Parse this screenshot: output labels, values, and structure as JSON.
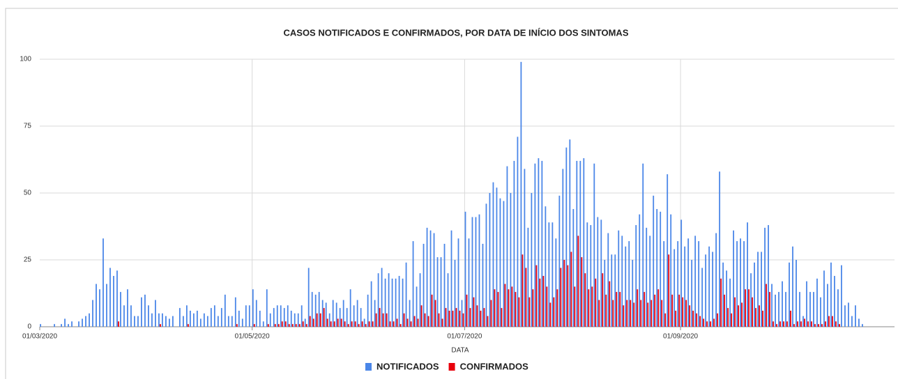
{
  "chart_data": {
    "type": "bar",
    "title": "CASOS NOTIFICADOS E CONFIRMADOS, POR DATA DE INÍCIO DOS SINTOMAS",
    "x_label": "DATA",
    "categories": [
      "01/03/2020",
      null,
      null,
      null,
      null,
      null,
      null,
      null,
      null,
      null,
      null,
      null,
      null,
      null,
      null,
      null,
      null,
      null,
      null,
      null,
      null,
      null,
      null,
      null,
      null,
      null,
      null,
      null,
      null,
      null,
      null,
      null,
      null,
      null,
      null,
      null,
      null,
      null,
      null,
      null,
      null,
      null,
      null,
      null,
      null,
      null,
      null,
      null,
      null,
      null,
      null,
      null,
      null,
      null,
      null,
      null,
      null,
      null,
      null,
      null,
      null,
      "01/05/2020",
      null,
      null,
      null,
      null,
      null,
      null,
      null,
      null,
      null,
      null,
      null,
      null,
      null,
      null,
      null,
      null,
      null,
      null,
      null,
      null,
      null,
      null,
      null,
      null,
      null,
      null,
      null,
      null,
      null,
      null,
      null,
      null,
      null,
      null,
      null,
      null,
      null,
      null,
      null,
      null,
      null,
      null,
      null,
      null,
      null,
      null,
      null,
      null,
      null,
      null,
      null,
      null,
      null,
      null,
      null,
      null,
      null,
      null,
      null,
      null,
      "01/07/2020",
      null,
      null,
      null,
      null,
      null,
      null,
      null,
      null,
      null,
      null,
      null,
      null,
      null,
      null,
      null,
      null,
      null,
      null,
      null,
      null,
      null,
      null,
      null,
      null,
      null,
      null,
      null,
      null,
      null,
      null,
      null,
      null,
      null,
      null,
      null,
      null,
      null,
      null,
      null,
      null,
      null,
      null,
      null,
      null,
      null,
      null,
      null,
      null,
      null,
      null,
      null,
      null,
      null,
      null,
      null,
      null,
      null,
      null,
      null,
      null,
      null,
      "01/09/2020",
      null,
      null,
      null,
      null,
      null,
      null,
      null,
      null,
      null,
      null,
      null,
      null,
      null,
      null,
      null,
      null,
      null,
      null,
      null,
      null,
      null,
      null,
      null,
      null,
      null,
      null,
      null,
      null,
      null,
      null,
      null,
      null,
      null,
      null,
      null,
      null,
      null,
      null,
      null,
      null,
      null,
      null,
      null,
      null,
      null,
      null,
      null,
      null,
      null,
      null,
      null,
      null,
      null
    ],
    "series": [
      {
        "name": "NOTIFICADOS",
        "color": "#4a86e8",
        "values": [
          1,
          0,
          0,
          0,
          1,
          0,
          1,
          3,
          1,
          2,
          0,
          2,
          3,
          4,
          5,
          10,
          16,
          14,
          33,
          16,
          22,
          19,
          21,
          13,
          8,
          14,
          8,
          4,
          4,
          11,
          12,
          8,
          5,
          10,
          5,
          5,
          4,
          3,
          4,
          0,
          7,
          4,
          8,
          6,
          5,
          6,
          3,
          5,
          4,
          7,
          8,
          4,
          7,
          12,
          4,
          4,
          11,
          6,
          3,
          8,
          8,
          14,
          10,
          6,
          2,
          14,
          5,
          7,
          8,
          8,
          7,
          8,
          6,
          5,
          5,
          8,
          3,
          22,
          13,
          12,
          13,
          10,
          9,
          5,
          10,
          9,
          7,
          10,
          7,
          14,
          8,
          10,
          7,
          3,
          12,
          17,
          10,
          20,
          22,
          18,
          20,
          18,
          18,
          19,
          18,
          24,
          10,
          32,
          15,
          20,
          31,
          37,
          36,
          35,
          26,
          26,
          31,
          20,
          36,
          25,
          33,
          10,
          43,
          33,
          41,
          41,
          42,
          31,
          46,
          50,
          54,
          52,
          48,
          47,
          60,
          50,
          62,
          71,
          99,
          59,
          37,
          50,
          61,
          63,
          62,
          45,
          39,
          39,
          33,
          49,
          59,
          67,
          70,
          44,
          62,
          62,
          63,
          39,
          38,
          61,
          41,
          40,
          25,
          35,
          27,
          27,
          36,
          34,
          30,
          32,
          25,
          38,
          42,
          61,
          37,
          34,
          49,
          44,
          43,
          32,
          57,
          42,
          29,
          32,
          40,
          30,
          33,
          25,
          34,
          32,
          22,
          27,
          30,
          28,
          35,
          58,
          24,
          21,
          18,
          36,
          32,
          33,
          32,
          39,
          20,
          24,
          28,
          28,
          37,
          38,
          16,
          12,
          13,
          17,
          13,
          24,
          30,
          25,
          13,
          4,
          17,
          13,
          13,
          18,
          11,
          21,
          16,
          24,
          19,
          14,
          23,
          8,
          9,
          4,
          8,
          3,
          1,
          0
        ]
      },
      {
        "name": "CONFIRMADOS",
        "color": "#e8000b",
        "values": [
          0,
          0,
          0,
          0,
          0,
          0,
          0,
          0,
          0,
          0,
          0,
          0,
          0,
          0,
          0,
          0,
          0,
          0,
          0,
          0,
          0,
          0,
          2,
          0,
          0,
          0,
          0,
          0,
          0,
          0,
          0,
          0,
          0,
          0,
          1,
          0,
          0,
          0,
          0,
          0,
          0,
          0,
          1,
          0,
          0,
          0,
          0,
          0,
          0,
          0,
          0,
          0,
          0,
          0,
          0,
          0,
          1,
          0,
          0,
          0,
          0,
          1,
          0,
          0,
          0,
          1,
          0,
          1,
          1,
          2,
          2,
          1,
          1,
          1,
          1,
          2,
          1,
          4,
          3,
          5,
          5,
          7,
          3,
          2,
          2,
          3,
          3,
          2,
          1,
          2,
          2,
          1,
          2,
          1,
          2,
          2,
          5,
          7,
          5,
          5,
          2,
          2,
          3,
          1,
          5,
          3,
          2,
          4,
          3,
          8,
          5,
          4,
          12,
          10,
          5,
          3,
          7,
          6,
          6,
          7,
          6,
          5,
          12,
          7,
          11,
          8,
          6,
          7,
          4,
          10,
          14,
          13,
          7,
          16,
          14,
          15,
          13,
          11,
          27,
          22,
          11,
          14,
          23,
          18,
          19,
          15,
          9,
          11,
          14,
          22,
          25,
          23,
          28,
          15,
          34,
          26,
          20,
          14,
          15,
          18,
          10,
          20,
          12,
          17,
          10,
          13,
          13,
          8,
          10,
          10,
          9,
          14,
          10,
          13,
          9,
          10,
          12,
          14,
          10,
          5,
          27,
          12,
          6,
          12,
          11,
          10,
          8,
          6,
          5,
          4,
          3,
          2,
          2,
          3,
          5,
          18,
          12,
          7,
          5,
          11,
          8,
          9,
          14,
          14,
          11,
          7,
          8,
          6,
          16,
          13,
          2,
          1,
          2,
          2,
          2,
          6,
          1,
          2,
          2,
          3,
          2,
          2,
          1,
          1,
          1,
          2,
          4,
          4,
          2,
          1,
          0,
          0,
          0,
          0,
          0,
          0,
          0,
          0
        ]
      }
    ],
    "ylim": [
      0,
      100
    ],
    "yticks": [
      0,
      25,
      50,
      75,
      100
    ],
    "grid": true,
    "legend": "bottom"
  }
}
